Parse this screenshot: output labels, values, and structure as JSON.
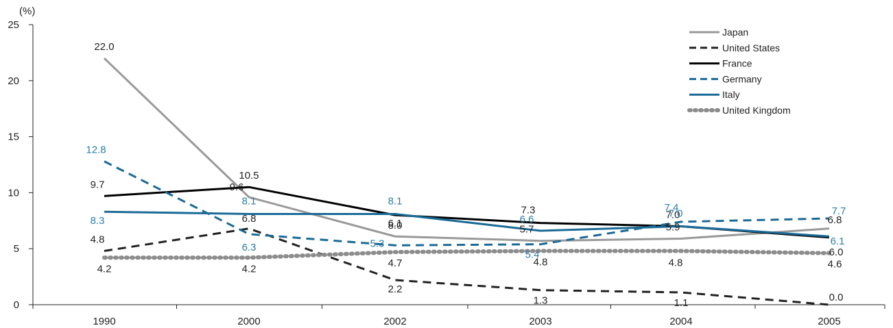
{
  "chart_data": {
    "type": "line",
    "ylabel": "(%)",
    "xlabel": "",
    "categories": [
      "1990",
      "2000",
      "2002",
      "2003",
      "2004",
      "2005"
    ],
    "ylim": [
      0,
      25
    ],
    "yticks": [
      "0",
      "5",
      "10",
      "15",
      "20",
      "25"
    ],
    "grid": false,
    "legend_position": "top-right",
    "series": [
      {
        "name": "Japan",
        "values": [
          22.0,
          9.6,
          6.1,
          5.7,
          5.9,
          6.8
        ],
        "labels": [
          "22.0",
          "9.6",
          "6.1",
          "5.7",
          "5.9",
          "6.8"
        ],
        "color": "#999999",
        "style": "solid"
      },
      {
        "name": "United States",
        "values": [
          4.8,
          6.8,
          2.2,
          1.3,
          1.1,
          0.0
        ],
        "labels": [
          "4.8",
          "6.8",
          "2.2",
          "1.3",
          "1.1",
          "0.0"
        ],
        "color": "#222222",
        "style": "dashed"
      },
      {
        "name": "France",
        "values": [
          9.7,
          10.5,
          8.0,
          7.3,
          7.0,
          6.0
        ],
        "labels": [
          "9.7",
          "10.5",
          "8.0",
          "7.3",
          "7.0",
          "6.0"
        ],
        "color": "#000000",
        "style": "solid"
      },
      {
        "name": "Germany",
        "values": [
          12.8,
          6.3,
          5.3,
          5.4,
          7.4,
          7.7
        ],
        "labels": [
          "12.8",
          "6.3",
          "5.3",
          "5.4",
          "7.4",
          "7.7"
        ],
        "color": "#1a6a96",
        "style": "dashed"
      },
      {
        "name": "Italy",
        "values": [
          8.3,
          8.1,
          8.1,
          6.6,
          7.0,
          6.1
        ],
        "labels": [
          "8.3",
          "8.1",
          "8.1",
          "6.6",
          "7.0",
          "6.1"
        ],
        "color": "#1a6a96",
        "style": "solid"
      },
      {
        "name": "United Kingdom",
        "values": [
          4.2,
          4.2,
          4.7,
          4.8,
          4.8,
          4.6
        ],
        "labels": [
          "4.2",
          "4.2",
          "4.7",
          "4.8",
          "4.8",
          "4.6"
        ],
        "color": "#8c8c8c",
        "style": "dotted"
      }
    ]
  }
}
